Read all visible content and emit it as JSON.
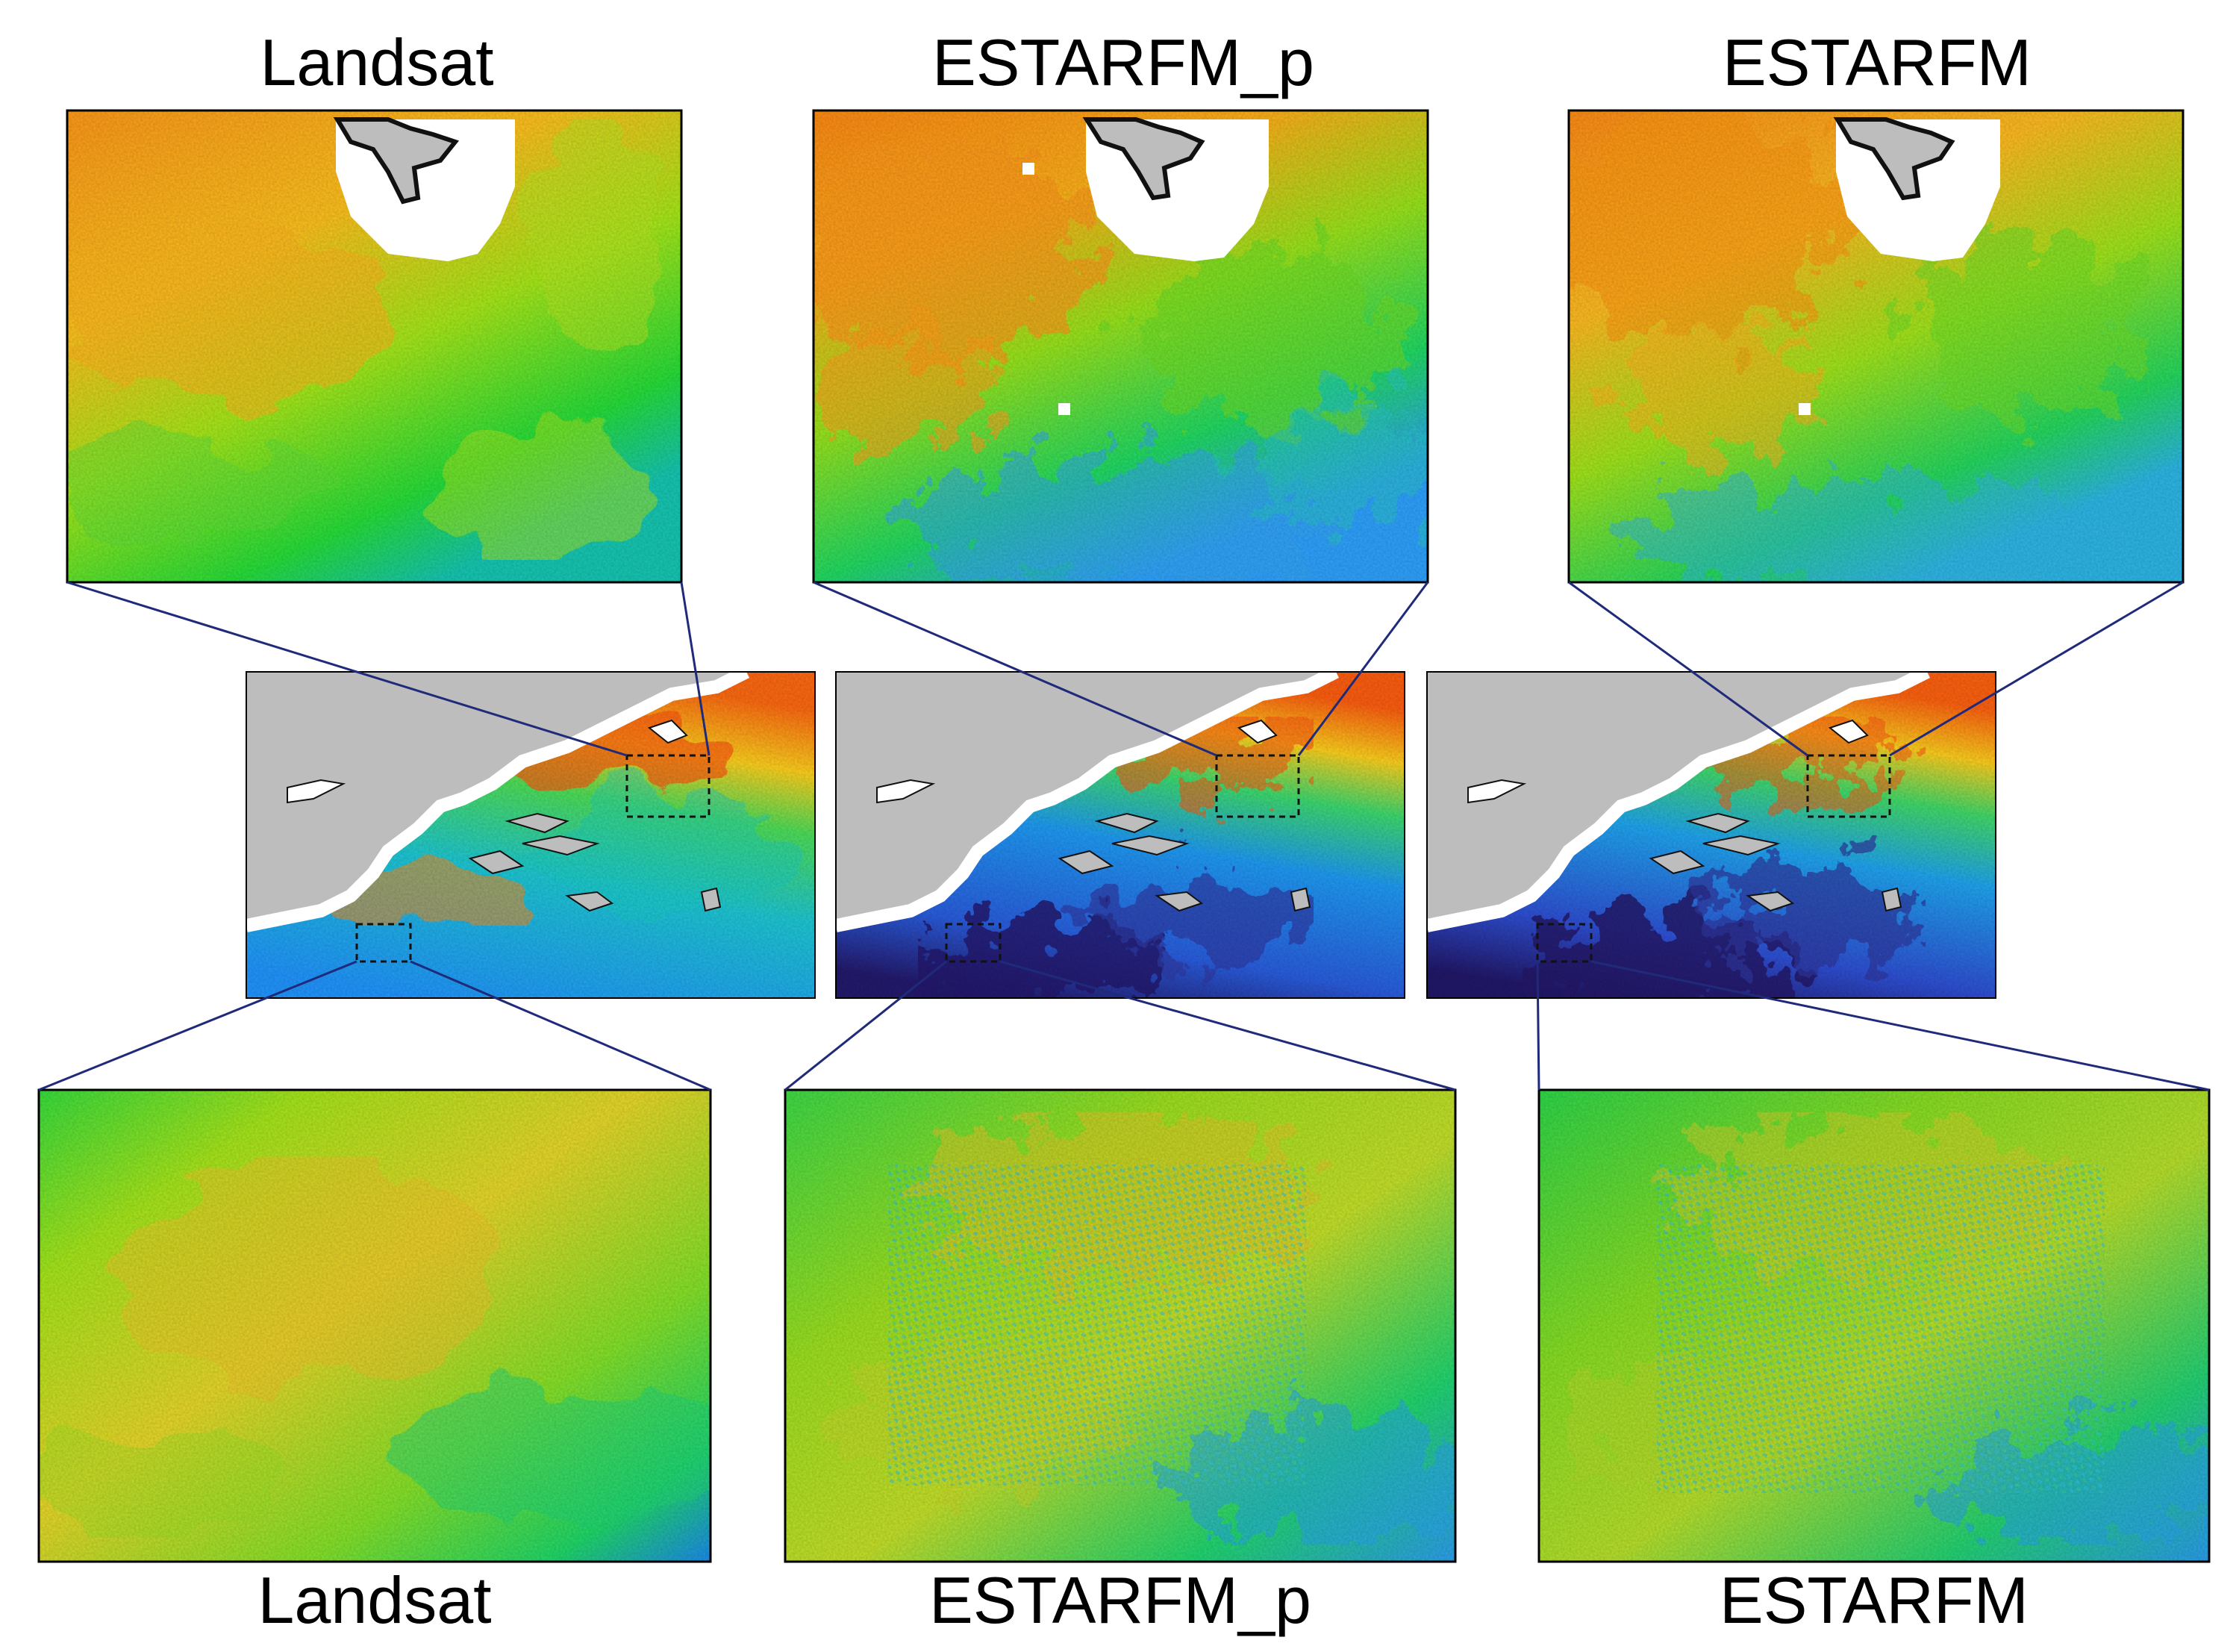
{
  "top_labels": [
    "Landsat",
    "ESTARFM_p",
    "ESTARFM"
  ],
  "bottom_labels": [
    "Landsat",
    "ESTARFM_p",
    "ESTARFM"
  ],
  "colors": {
    "connector_line": "#1f2a7a",
    "land": "#bdbdbd",
    "cloud": "#ffffff",
    "frame": "#000000"
  },
  "colormap": "jet"
}
